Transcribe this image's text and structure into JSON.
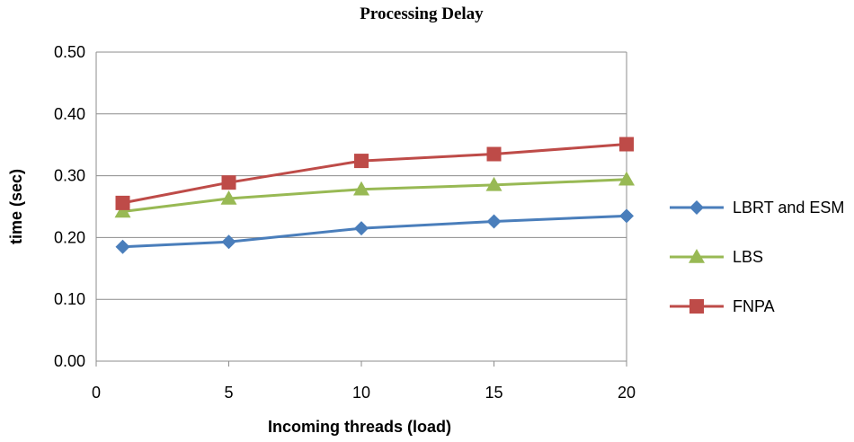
{
  "chart_data": {
    "type": "line",
    "title": "Processing Delay",
    "xlabel": "Incoming threads (load)",
    "ylabel": "time (sec)",
    "xlim": [
      0,
      20
    ],
    "ylim": [
      0,
      0.5
    ],
    "xticks": [
      "0",
      "5",
      "10",
      "15",
      "20"
    ],
    "xtick_values": [
      0,
      5,
      10,
      15,
      20
    ],
    "yticks": [
      "0.00",
      "0.10",
      "0.20",
      "0.30",
      "0.40",
      "0.50"
    ],
    "ytick_values": [
      0,
      0.1,
      0.2,
      0.3,
      0.4,
      0.5
    ],
    "grid": "horizontal",
    "legend_position": "right",
    "x": [
      1,
      5,
      10,
      15,
      20
    ],
    "series": [
      {
        "name": "LBRT and ESM",
        "values": [
          0.185,
          0.193,
          0.215,
          0.226,
          0.235
        ],
        "color": "#4a7ebb",
        "marker": "diamond"
      },
      {
        "name": "LBS",
        "values": [
          0.242,
          0.263,
          0.278,
          0.285,
          0.294
        ],
        "color": "#98b954",
        "marker": "triangle"
      },
      {
        "name": "FNPA",
        "values": [
          0.256,
          0.289,
          0.324,
          0.335,
          0.351
        ],
        "color": "#be4b48",
        "marker": "square"
      }
    ]
  }
}
